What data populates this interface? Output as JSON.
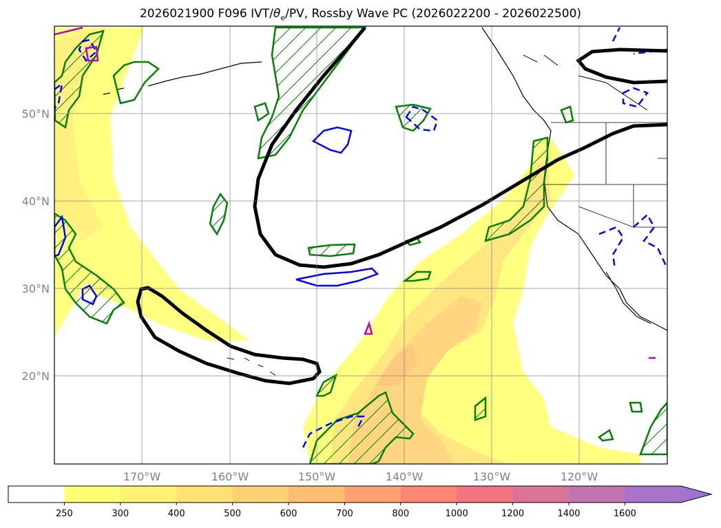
{
  "title": {
    "prefix": "2026021900 F096 IVT/",
    "theta": "θ",
    "theta_sub": "e",
    "suffix": "/PV, Rossby Wave PC (2026022200 - 2026022500)"
  },
  "map": {
    "lat_labels": [
      "50°N",
      "40°N",
      "30°N",
      "20°N"
    ],
    "lon_labels": [
      "170°W",
      "160°W",
      "150°W",
      "140°W",
      "130°W",
      "120°W"
    ]
  },
  "colorbar": {
    "ticks": [
      "250",
      "300",
      "400",
      "500",
      "600",
      "700",
      "800",
      "1000",
      "1200",
      "1400",
      "1600"
    ],
    "colors": [
      "#ffff73",
      "#fff073",
      "#ffe073",
      "#ffd173",
      "#ffbd73",
      "#ffa273",
      "#ff8673",
      "#f37380",
      "#d97398",
      "#bf73b0",
      "#a673c8"
    ],
    "extend_color": "#9f73cf"
  },
  "colors": {
    "pv_contour": "#008000",
    "theta_solid": "#0000ff",
    "theta_dashed": "#0000ff",
    "rossby_wave": "#000000",
    "magenta": "#c000c0"
  }
}
